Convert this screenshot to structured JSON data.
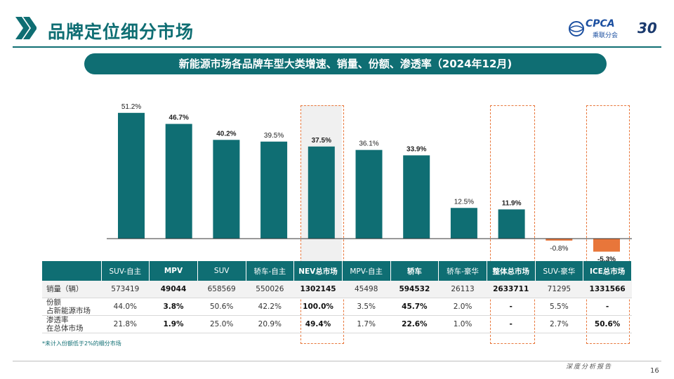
{
  "header": {
    "title": "品牌定位细分市场",
    "logo_text": "CPCA",
    "logo_sub": "乘联分会",
    "logo_badge": "30"
  },
  "banner": "新能源市场各品牌车型大类增速、销量、份额、渗透率（2024年12月)",
  "colors": {
    "teal": "#0f6e73",
    "orange": "#e8763a"
  },
  "chart_data": {
    "type": "bar",
    "categories": [
      "SUV-自主",
      "MPV",
      "SUV",
      "轿车-自主",
      "NEV总市场",
      "MPV-自主",
      "轿车",
      "轿车-豪华",
      "整体总市场",
      "SUV-豪华",
      "ICE总市场"
    ],
    "values": [
      51.2,
      46.7,
      40.2,
      39.5,
      37.5,
      36.1,
      33.9,
      12.5,
      11.9,
      -0.8,
      -5.3
    ],
    "labels": [
      "51.2%",
      "46.7%",
      "40.2%",
      "39.5%",
      "37.5%",
      "36.1%",
      "33.9%",
      "12.5%",
      "11.9%",
      "-0.8%",
      "-5.3%"
    ],
    "bold_labels": [
      false,
      true,
      true,
      false,
      true,
      false,
      true,
      false,
      true,
      false,
      true
    ],
    "highlighted": [
      "NEV总市场",
      "整体总市场",
      "ICE总市场"
    ],
    "ylim": [
      -6,
      55
    ],
    "title": "",
    "xlabel": "",
    "ylabel": ""
  },
  "table": {
    "headers": [
      "",
      "SUV-自主",
      "MPV",
      "SUV",
      "轿车-自主",
      "NEV总市场",
      "MPV-自主",
      "轿车",
      "轿车-豪华",
      "整体总市场",
      "SUV-豪华",
      "ICE总市场"
    ],
    "bold_headers": [
      false,
      false,
      true,
      false,
      false,
      true,
      false,
      true,
      false,
      true,
      false,
      true
    ],
    "rows": [
      {
        "label": "销量（辆）",
        "cells": [
          "573419",
          "49044",
          "658569",
          "550026",
          "1302145",
          "45498",
          "594532",
          "26113",
          "2633711",
          "71295",
          "1331566"
        ]
      },
      {
        "label": "份额\n占新能源市场",
        "cells": [
          "44.0%",
          "3.8%",
          "50.6%",
          "42.2%",
          "100.0%",
          "3.5%",
          "45.7%",
          "2.0%",
          "-",
          "5.5%",
          "-"
        ]
      },
      {
        "label": "渗透率\n在总体市场",
        "cells": [
          "21.8%",
          "1.9%",
          "25.0%",
          "20.9%",
          "49.4%",
          "1.7%",
          "22.6%",
          "1.0%",
          "-",
          "2.7%",
          "50.6%"
        ]
      }
    ]
  },
  "note": "*未计入份额低于2%的细分市场",
  "footer": {
    "tag": "深度分析报告",
    "page": "16"
  }
}
